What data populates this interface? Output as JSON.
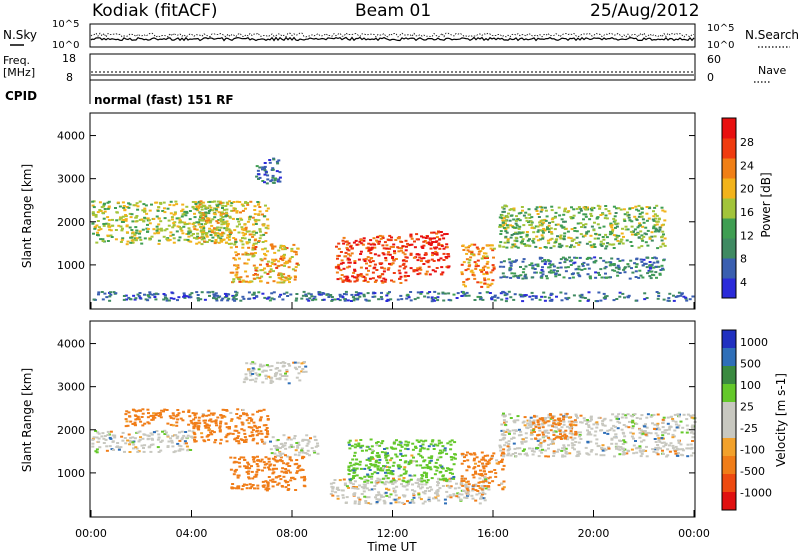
{
  "header": {
    "station": "Kodiak (fitACF)",
    "beam": "Beam 01",
    "date": "25/Aug/2012"
  },
  "strip_labels": {
    "nsky": "N.Sky",
    "nsearch": "N.Search",
    "freq_line1": "Freq.",
    "freq_line2": "[MHz]",
    "nave": "Nave",
    "cpid": "CPID",
    "mode": "normal (fast) 151 RF"
  },
  "colors": {
    "power": [
      "#2b2bd9",
      "#3a5fb0",
      "#3f8a62",
      "#3f9e52",
      "#a2c43a",
      "#f2b31b",
      "#f07f16",
      "#ef3b0f",
      "#e81010"
    ],
    "velocity_pos": [
      "#2030c0",
      "#2f6fb8",
      "#3a8a40",
      "#64c82a"
    ],
    "velocity_neutral": "#c8c8c0",
    "velocity_neg": [
      "#f2a12b",
      "#f07d18",
      "#ee4a10",
      "#e01010"
    ]
  },
  "chart_data": [
    {
      "type": "line",
      "name": "noise-strip",
      "y_left_ticks": [
        "10^5",
        "10^0"
      ],
      "y_right_ticks": [
        "10^5",
        "10^0"
      ]
    },
    {
      "type": "line",
      "name": "freq-nave-strip",
      "y_left_ticks": [
        "18",
        "8"
      ],
      "y_right_ticks": [
        "60",
        "0"
      ]
    },
    {
      "type": "heatmap",
      "name": "power",
      "ylabel": "Slant Range [km]",
      "ylim": [
        0,
        4500
      ],
      "y_ticks": [
        "4000",
        "3000",
        "2000",
        "1000"
      ],
      "xlim": [
        0,
        24
      ],
      "colorbar_label": "Power [dB]",
      "colorbar_ticks": [
        "28",
        "24",
        "20",
        "16",
        "12",
        "8",
        "4"
      ],
      "regions": [
        {
          "t": [
            0.0,
            5.5
          ],
          "r": [
            1500,
            2500
          ],
          "level": 16
        },
        {
          "t": [
            4.0,
            7.0
          ],
          "r": [
            1500,
            2500
          ],
          "level": 18
        },
        {
          "t": [
            5.5,
            8.2
          ],
          "r": [
            600,
            1500
          ],
          "level": 20
        },
        {
          "t": [
            6.5,
            7.5
          ],
          "r": [
            2900,
            3500
          ],
          "level": 6
        },
        {
          "t": [
            9.7,
            12.6
          ],
          "r": [
            600,
            1700
          ],
          "level": 26
        },
        {
          "t": [
            12.6,
            14.2
          ],
          "r": [
            800,
            1800
          ],
          "level": 28
        },
        {
          "t": [
            14.7,
            16.0
          ],
          "r": [
            500,
            1500
          ],
          "level": 22
        },
        {
          "t": [
            16.2,
            22.8
          ],
          "r": [
            1400,
            2400
          ],
          "level": 14
        },
        {
          "t": [
            16.2,
            22.8
          ],
          "r": [
            700,
            1200
          ],
          "level": 8
        },
        {
          "t": [
            0.0,
            24.0
          ],
          "r": [
            180,
            400
          ],
          "level": 6
        }
      ]
    },
    {
      "type": "heatmap",
      "name": "velocity",
      "ylabel": "Slant Range [km]",
      "ylim": [
        0,
        4500
      ],
      "y_ticks": [
        "4000",
        "3000",
        "2000",
        "1000"
      ],
      "xlim": [
        0,
        24
      ],
      "xlabel": "Time UT",
      "x_ticks": [
        "00:00",
        "04:00",
        "08:00",
        "12:00",
        "16:00",
        "20:00",
        "00:00"
      ],
      "colorbar_label": "Velocity [m s-1]",
      "colorbar_ticks": [
        "1000",
        "500",
        "100",
        "25",
        "-25",
        "-100",
        "-500",
        "-1000"
      ],
      "regions": [
        {
          "t": [
            0.0,
            4.0
          ],
          "r": [
            1500,
            2000
          ],
          "value": 0
        },
        {
          "t": [
            1.3,
            4.3
          ],
          "r": [
            2100,
            2500
          ],
          "value": -200
        },
        {
          "t": [
            4.0,
            7.0
          ],
          "r": [
            1700,
            2500
          ],
          "value": -150
        },
        {
          "t": [
            5.5,
            8.5
          ],
          "r": [
            600,
            1400
          ],
          "value": -300
        },
        {
          "t": [
            7.0,
            9.0
          ],
          "r": [
            1400,
            1900
          ],
          "value": 0
        },
        {
          "t": [
            9.5,
            15.8
          ],
          "r": [
            300,
            900
          ],
          "value": 0
        },
        {
          "t": [
            10.2,
            14.5
          ],
          "r": [
            800,
            1800
          ],
          "value": 80
        },
        {
          "t": [
            14.7,
            16.4
          ],
          "r": [
            600,
            1500
          ],
          "value": -120
        },
        {
          "t": [
            16.2,
            24.0
          ],
          "r": [
            1400,
            2400
          ],
          "value": 0
        },
        {
          "t": [
            17.5,
            19.3
          ],
          "r": [
            1800,
            2400
          ],
          "value": -100
        },
        {
          "t": [
            6.0,
            8.5
          ],
          "r": [
            3100,
            3600
          ],
          "value": 0
        }
      ]
    }
  ]
}
